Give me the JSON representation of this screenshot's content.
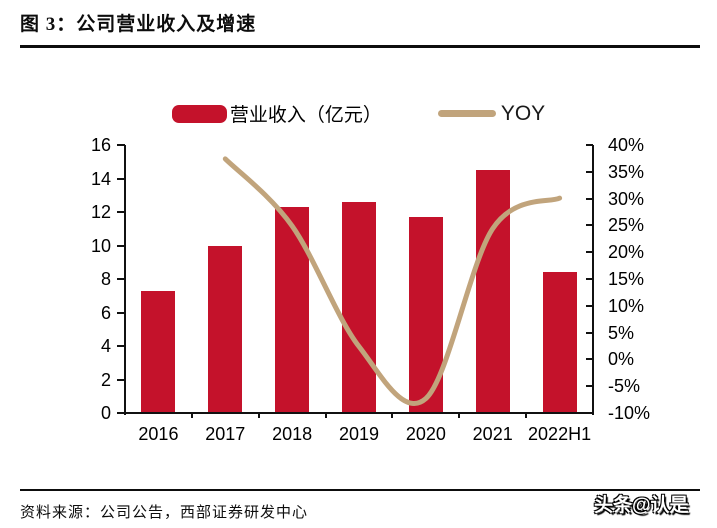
{
  "page": {
    "title": "图 3：公司营业收入及增速",
    "source_note": "资料来源：公司公告，西部证券研发中心",
    "watermark": "头条@认是"
  },
  "colors": {
    "bar_red": "#C4122B",
    "line_tan": "#C1A47C",
    "rule_black": "#0d0d0d"
  },
  "chart_data": {
    "type": "bar",
    "subtype": "bar+line dual-axis",
    "categories": [
      "2016",
      "2017",
      "2018",
      "2019",
      "2020",
      "2021",
      "2022H1"
    ],
    "series": [
      {
        "name": "营业收入（亿元）",
        "type": "bar",
        "axis": "left",
        "color": "#C4122B",
        "values": [
          7.3,
          10.0,
          12.3,
          12.6,
          11.7,
          14.5,
          8.4
        ]
      },
      {
        "name": "YOY",
        "type": "line",
        "axis": "right",
        "color": "#C1A47C",
        "values": [
          null,
          37.4,
          24.9,
          2.4,
          -7.3,
          24.4,
          30.1
        ]
      }
    ],
    "left_axis": {
      "min": 0,
      "max": 16,
      "step": 2,
      "ticks": [
        "0",
        "2",
        "4",
        "6",
        "8",
        "10",
        "12",
        "14",
        "16"
      ]
    },
    "right_axis": {
      "min": -10,
      "max": 40,
      "step": 5,
      "ticks": [
        "-10%",
        "-5%",
        "0%",
        "5%",
        "10%",
        "15%",
        "20%",
        "25%",
        "30%",
        "35%",
        "40%"
      ]
    },
    "grid": false,
    "legend_position": "top-center",
    "title": "图 3：公司营业收入及增速"
  }
}
